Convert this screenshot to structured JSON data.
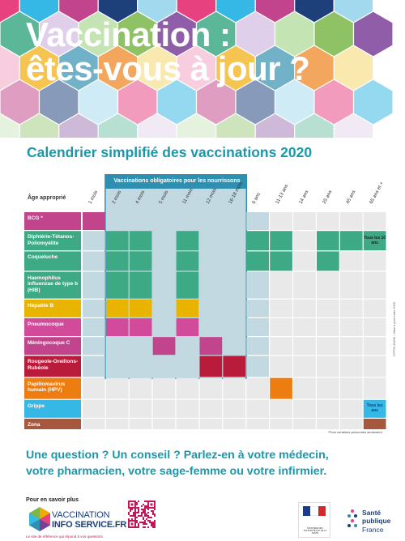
{
  "header": {
    "title_line1": "Vaccination :",
    "title_line2": "êtes-vous à jour ?"
  },
  "subtitle": "Calendrier simplifié des vaccinations 2020",
  "table": {
    "obligatory_label": "Vaccinations obligatoires pour les nourrissons",
    "age_header": "Âge approprié",
    "columns": [
      "1 mois",
      "2 mois",
      "4 mois",
      "5 mois",
      "11 mois",
      "12 mois",
      "16-18 mois",
      "6 ans",
      "11-13 ans",
      "14 ans",
      "25 ans",
      "45 ans",
      "65 ans et +"
    ],
    "rows": [
      {
        "label": "BCG *",
        "color": "#c2448c",
        "cells": [
          1,
          0,
          0,
          0,
          0,
          0,
          0,
          0,
          0,
          0,
          0,
          0,
          0
        ]
      },
      {
        "label": "Diphtérie-Tétanos-Poliomyélite",
        "color": "#3eaa85",
        "cells": [
          0,
          1,
          1,
          0,
          1,
          0,
          0,
          1,
          1,
          0,
          1,
          1,
          2
        ]
      },
      {
        "label": "Coqueluche",
        "color": "#3eaa85",
        "cells": [
          0,
          1,
          1,
          0,
          1,
          0,
          0,
          1,
          1,
          0,
          1,
          0,
          0
        ]
      },
      {
        "label": "Haemophilus influenzae de type b (HIB)",
        "color": "#3eaa85",
        "cells": [
          0,
          1,
          1,
          0,
          1,
          0,
          0,
          0,
          0,
          0,
          0,
          0,
          0
        ]
      },
      {
        "label": "Hépatite B",
        "color": "#e8b400",
        "cells": [
          0,
          1,
          1,
          0,
          1,
          0,
          0,
          0,
          0,
          0,
          0,
          0,
          0
        ]
      },
      {
        "label": "Pneumocoque",
        "color": "#d24b9b",
        "cells": [
          0,
          1,
          1,
          0,
          1,
          0,
          0,
          0,
          0,
          0,
          0,
          0,
          0
        ]
      },
      {
        "label": "Méningocoque C",
        "color": "#c2448c",
        "cells": [
          0,
          0,
          0,
          1,
          0,
          1,
          0,
          0,
          0,
          0,
          0,
          0,
          0
        ]
      },
      {
        "label": "Rougeole-Oreillons-Rubéole",
        "color": "#b81c3a",
        "cells": [
          0,
          0,
          0,
          0,
          0,
          1,
          1,
          0,
          0,
          0,
          0,
          0,
          0
        ]
      },
      {
        "label": "Papillomavirus humain (HPV)",
        "color": "#ee7d11",
        "cells": [
          0,
          0,
          0,
          0,
          0,
          0,
          0,
          0,
          1,
          0,
          0,
          0,
          0
        ]
      },
      {
        "label": "Grippe",
        "color": "#35b8e6",
        "cells": [
          0,
          0,
          0,
          0,
          0,
          0,
          0,
          0,
          0,
          0,
          0,
          0,
          2
        ]
      },
      {
        "label": "Zona",
        "color": "#a8573f",
        "cells": [
          0,
          0,
          0,
          0,
          0,
          0,
          0,
          0,
          0,
          0,
          0,
          0,
          1
        ]
      }
    ],
    "tous_les_10_ans": "Tous les 10 ans",
    "tous_les_ans": "Tous les ans",
    "footnote": "*Pour certaines personnes seulement",
    "side_note": "DTP20-81/Nil - Mise à jour mars 2020"
  },
  "question": {
    "line1": "Une question ? Un conseil ?   Parlez-en à votre médecin,",
    "line2": "votre pharmacien, votre sage-femme ou votre infirmier."
  },
  "footer": {
    "more_label": "Pour en savoir plus",
    "vis_line1": "VACCINATION",
    "vis_line2": "INFO SERVICE.FR",
    "vis_tagline": "Le site de référence qui répond à vos questions",
    "marianne_text": "MINISTÈRE DES SOLIDARITÉS ET DE LA SANTÉ",
    "sp_line1": "Santé",
    "sp_line2": "publique",
    "sp_line3": "France"
  },
  "colors": {
    "accent": "#1c97a9",
    "oblig_frame": "#2f8fb0",
    "oblig_fill": "#c3d9e2",
    "grid_cell": "#e9e9e9"
  }
}
